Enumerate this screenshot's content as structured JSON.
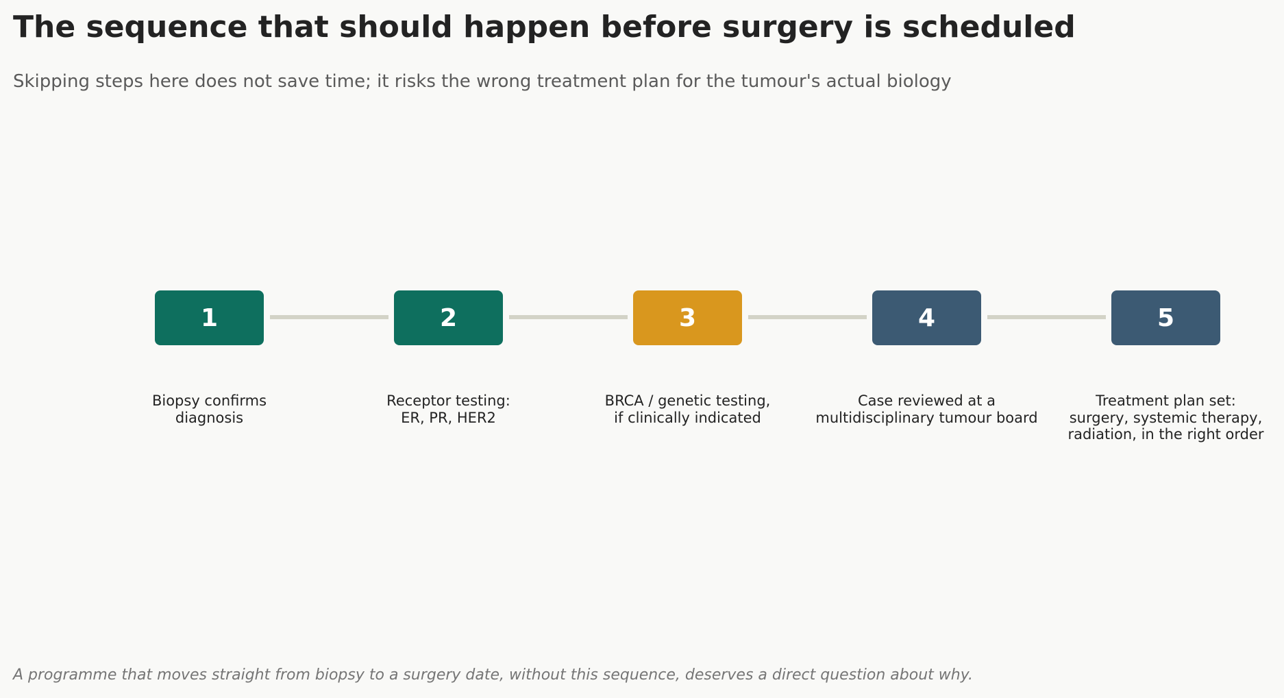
{
  "header": {
    "title": "The sequence that should happen before surgery is scheduled",
    "subtitle": "Skipping steps here does not save time; it risks the wrong treatment plan for the tumour's actual biology"
  },
  "steps": [
    {
      "number": "1",
      "label": "Biopsy confirms\ndiagnosis",
      "color": "#0e6f5e"
    },
    {
      "number": "2",
      "label": "Receptor testing:\nER, PR, HER2",
      "color": "#0e6f5e"
    },
    {
      "number": "3",
      "label": "BRCA / genetic testing,\nif clinically indicated",
      "color": "#d9971e"
    },
    {
      "number": "4",
      "label": "Case reviewed at a\nmultidisciplinary tumour board",
      "color": "#3c5a73"
    },
    {
      "number": "5",
      "label": "Treatment plan set:\nsurgery, systemic therapy,\nradiation, in the right order",
      "color": "#3c5a73"
    }
  ],
  "connector_color": "#d3d3c7",
  "footnote": "A programme that moves straight from biopsy to a surgery date, without this sequence, deserves a direct question about why."
}
